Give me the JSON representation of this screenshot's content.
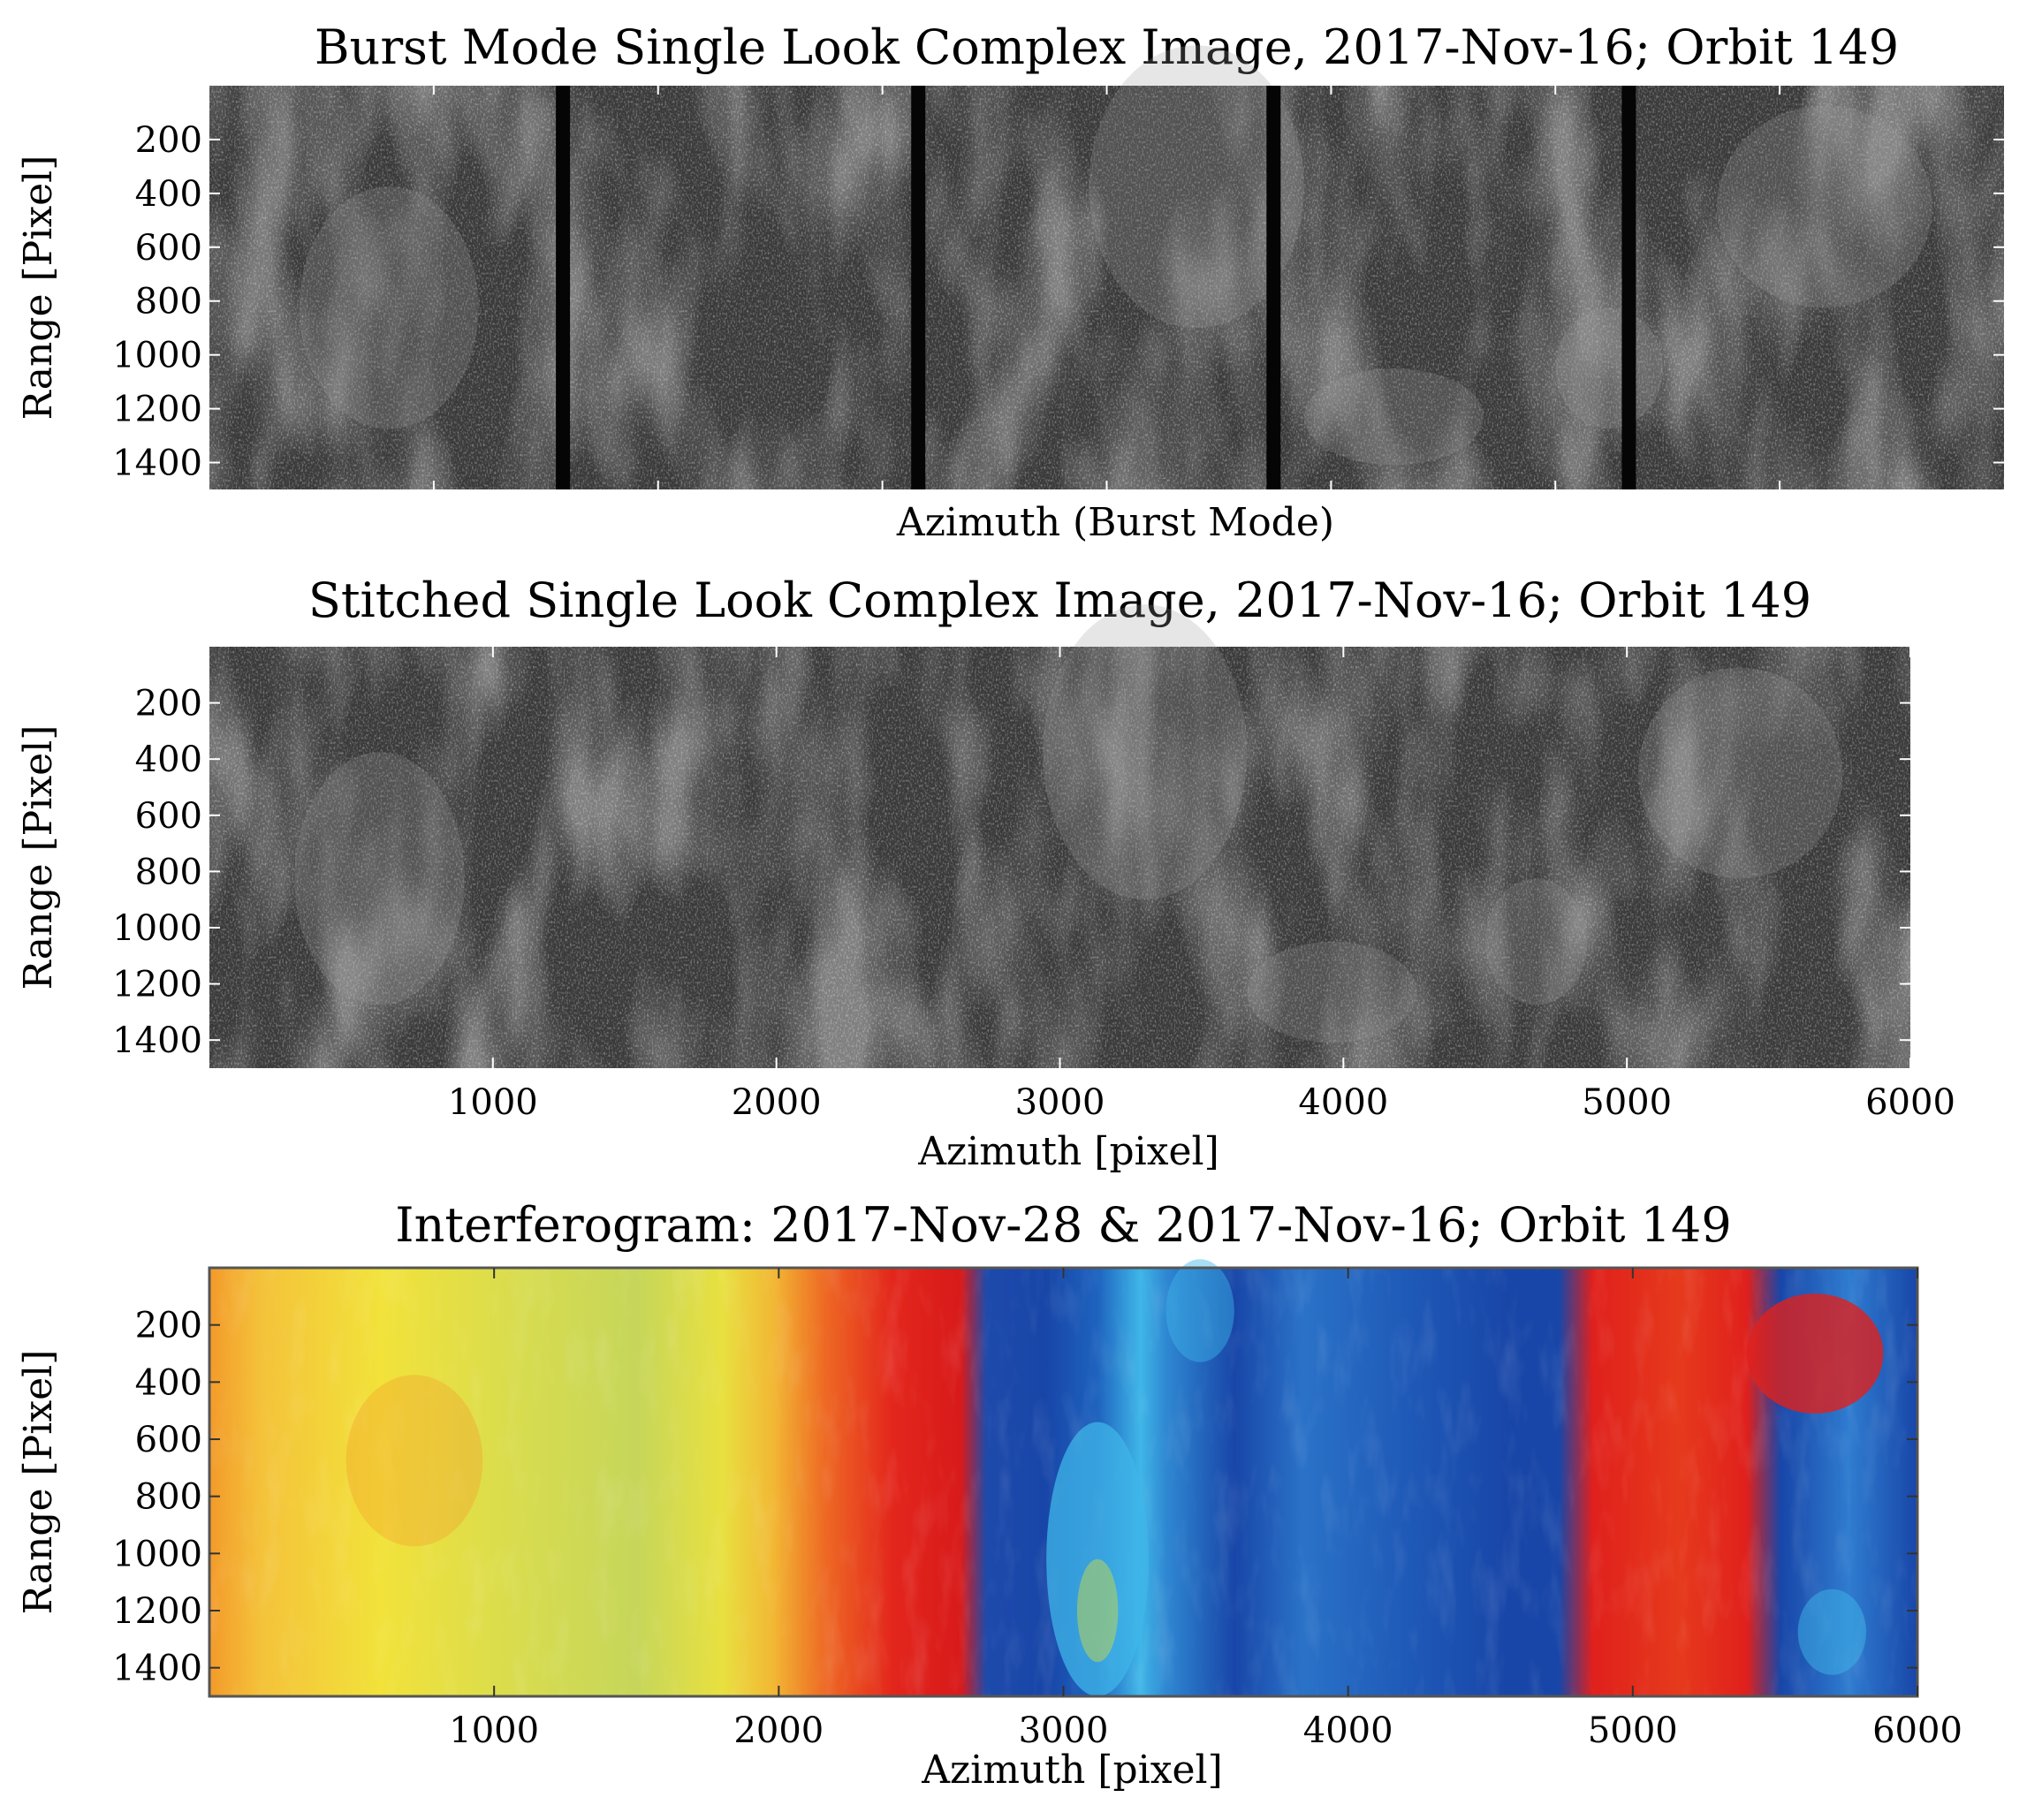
{
  "figure": {
    "panels": [
      {
        "id": "burst",
        "title": "Burst Mode Single Look Complex Image, 2017-Nov-16; Orbit 149",
        "xlabel": "Azimuth (Burst Mode)",
        "ylabel": "Range [Pixel]"
      },
      {
        "id": "stitched",
        "title": "Stitched Single Look Complex Image, 2017-Nov-16; Orbit 149",
        "xlabel": "Azimuth [pixel]",
        "ylabel": "Range [Pixel]"
      },
      {
        "id": "interferogram",
        "title": "Interferogram: 2017-Nov-28 & 2017-Nov-16; Orbit 149",
        "xlabel": "Azimuth [pixel]",
        "ylabel": "Range [Pixel]"
      }
    ]
  },
  "chart_data": [
    {
      "type": "heatmap",
      "title": "Burst Mode Single Look Complex Image, 2017-Nov-16; Orbit 149",
      "xlabel": "Azimuth (Burst Mode)",
      "ylabel": "Range [Pixel]",
      "colormap": "grayscale",
      "y_ticks": [
        200,
        400,
        600,
        800,
        1000,
        1200,
        1400
      ],
      "ylim": [
        0,
        1500
      ],
      "x_tick_labels_shown": false,
      "bursts": 5,
      "burst_gap_color": "#050505",
      "grid": false
    },
    {
      "type": "heatmap",
      "title": "Stitched Single Look Complex Image, 2017-Nov-16; Orbit 149",
      "xlabel": "Azimuth [pixel]",
      "ylabel": "Range [Pixel]",
      "colormap": "grayscale",
      "x_ticks": [
        1000,
        2000,
        3000,
        4000,
        5000,
        6000
      ],
      "xlim": [
        0,
        6000
      ],
      "y_ticks": [
        200,
        400,
        600,
        800,
        1000,
        1200,
        1400
      ],
      "ylim": [
        0,
        1500
      ],
      "grid": false
    },
    {
      "type": "heatmap",
      "title": "Interferogram: 2017-Nov-28 & 2017-Nov-16; Orbit 149",
      "xlabel": "Azimuth [pixel]",
      "ylabel": "Range [Pixel]",
      "colormap": "jet (phase)",
      "x_ticks": [
        1000,
        2000,
        3000,
        4000,
        5000,
        6000
      ],
      "xlim": [
        0,
        6000
      ],
      "y_ticks": [
        200,
        400,
        600,
        800,
        1000,
        1200,
        1400
      ],
      "ylim": [
        0,
        1500
      ],
      "grid": false,
      "colors": {
        "yellow": "#f2e23a",
        "orange": "#f39a2a",
        "red": "#e0201c",
        "dark_blue": "#1846a8",
        "light_blue": "#3fb6e8",
        "green_yellow": "#b9d35a"
      }
    }
  ]
}
